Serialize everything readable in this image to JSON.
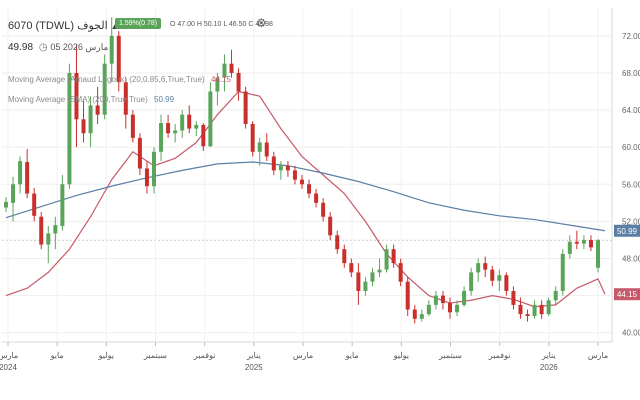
{
  "header": {
    "symbol": "6070 (TDWL)",
    "name": "الجوف",
    "change": "1.59%(0.78)",
    "last": "49.98",
    "date": "05 مارس 2026",
    "ohlc": "O 47.00  H 50.10  L 46.50  C 49.98",
    "gear_icon": "gear-icon",
    "clock_icon": "clock-icon",
    "up_arrow": "▲"
  },
  "indicators": [
    {
      "label": "Moving Average (Arnaud Legoux) (20,0.85,6,True,True)",
      "value": "44.15",
      "color": "#c65a6a"
    },
    {
      "label": "Moving Average (SMA) (200,True,True)",
      "value": "50.99",
      "color": "#5b7fa4"
    }
  ],
  "chart_data": {
    "type": "candlestick",
    "title": "",
    "xlabel": "",
    "ylabel": "",
    "ylim": [
      39,
      75
    ],
    "grid": true,
    "y_ticks": [
      "40.00",
      "44.00",
      "48.00",
      "52.00",
      "56.00",
      "60.00",
      "64.00",
      "68.00",
      "72.00"
    ],
    "y_tick_values": [
      40,
      44,
      48,
      52,
      56,
      60,
      64,
      68,
      72
    ],
    "x_labels": [
      "مارس",
      "مايو",
      "يوليو",
      "سبتمبر",
      "نوفمبر",
      "يناير",
      "مارس",
      "مايو",
      "يوليو",
      "سبتمبر",
      "نوفمبر",
      "يناير",
      "مارس"
    ],
    "x_years": [
      "2024",
      "",
      "",
      "",
      "",
      "2025",
      "",
      "",
      "",
      "",
      "",
      "2026",
      ""
    ],
    "up_color": "#5aa45a",
    "down_color": "#c9302c",
    "last_price": 49.98,
    "candles": [
      [
        53.5,
        54.6,
        53.0,
        54.1
      ],
      [
        54.0,
        56.8,
        52.0,
        56.0
      ],
      [
        56.0,
        59.0,
        55.0,
        58.5
      ],
      [
        58.4,
        59.8,
        54.5,
        55.0
      ],
      [
        55.0,
        55.6,
        52.0,
        52.6
      ],
      [
        52.5,
        53.0,
        49.0,
        49.5
      ],
      [
        49.5,
        51.5,
        47.5,
        50.7
      ],
      [
        50.7,
        52.5,
        49.0,
        51.6
      ],
      [
        51.5,
        57.0,
        51.0,
        56.0
      ],
      [
        56.0,
        69.0,
        55.5,
        68.0
      ],
      [
        68.0,
        71.0,
        60.0,
        63.0
      ],
      [
        63.0,
        65.0,
        60.5,
        61.5
      ],
      [
        61.5,
        65.5,
        60.0,
        64.5
      ],
      [
        64.5,
        66.5,
        62.5,
        63.5
      ],
      [
        63.5,
        70.0,
        63.0,
        69.0
      ],
      [
        69.0,
        74.0,
        67.0,
        72.0
      ],
      [
        72.0,
        72.5,
        66.0,
        67.0
      ],
      [
        67.0,
        67.5,
        62.0,
        63.5
      ],
      [
        63.5,
        64.0,
        60.5,
        61.0
      ],
      [
        61.0,
        61.5,
        57.0,
        57.7
      ],
      [
        57.7,
        58.5,
        55.0,
        55.8
      ],
      [
        55.8,
        60.0,
        55.0,
        59.5
      ],
      [
        59.5,
        63.5,
        58.5,
        62.6
      ],
      [
        62.6,
        63.5,
        61.0,
        61.5
      ],
      [
        61.5,
        62.5,
        60.5,
        61.8
      ],
      [
        61.8,
        64.0,
        61.0,
        63.5
      ],
      [
        63.5,
        64.5,
        61.5,
        62.0
      ],
      [
        62.0,
        62.8,
        61.2,
        62.4
      ],
      [
        62.4,
        62.6,
        59.6,
        60.1
      ],
      [
        60.1,
        67.0,
        60.0,
        66.0
      ],
      [
        66.0,
        68.0,
        64.5,
        67.5
      ],
      [
        67.5,
        70.0,
        66.0,
        69.0
      ],
      [
        69.0,
        70.5,
        67.5,
        68.0
      ],
      [
        68.0,
        68.5,
        65.0,
        66.0
      ],
      [
        66.0,
        66.5,
        62.0,
        62.5
      ],
      [
        62.5,
        62.8,
        59.0,
        59.5
      ],
      [
        59.5,
        61.0,
        58.0,
        60.5
      ],
      [
        60.5,
        61.5,
        58.5,
        59.0
      ],
      [
        59.0,
        59.5,
        57.0,
        57.5
      ],
      [
        57.5,
        58.5,
        56.5,
        58.0
      ],
      [
        58.0,
        58.5,
        56.8,
        57.5
      ],
      [
        57.5,
        58.0,
        56.0,
        56.5
      ],
      [
        56.5,
        57.0,
        55.5,
        56.0
      ],
      [
        56.0,
        56.5,
        54.5,
        55.0
      ],
      [
        55.0,
        55.5,
        53.5,
        54.0
      ],
      [
        54.0,
        54.5,
        52.0,
        52.5
      ],
      [
        52.5,
        53.0,
        50.0,
        50.5
      ],
      [
        50.5,
        51.0,
        48.5,
        49.0
      ],
      [
        49.0,
        49.5,
        47.0,
        47.5
      ],
      [
        47.5,
        48.0,
        46.0,
        46.5
      ],
      [
        46.5,
        47.5,
        43.0,
        44.5
      ],
      [
        44.5,
        46.0,
        44.0,
        45.5
      ],
      [
        45.5,
        47.0,
        45.0,
        46.5
      ],
      [
        46.5,
        48.0,
        46.0,
        46.8
      ],
      [
        46.8,
        49.5,
        46.5,
        49.0
      ],
      [
        49.0,
        49.5,
        47.0,
        47.5
      ],
      [
        47.5,
        48.0,
        45.0,
        45.5
      ],
      [
        45.5,
        46.0,
        41.8,
        42.5
      ],
      [
        42.5,
        43.0,
        41.0,
        41.5
      ],
      [
        41.5,
        42.5,
        41.2,
        42.0
      ],
      [
        42.0,
        43.5,
        41.8,
        43.0
      ],
      [
        43.0,
        44.5,
        42.5,
        44.0
      ],
      [
        44.0,
        44.5,
        42.5,
        43.2
      ],
      [
        43.2,
        43.8,
        41.5,
        42.2
      ],
      [
        42.2,
        43.5,
        41.8,
        43.0
      ],
      [
        43.0,
        45.0,
        42.8,
        44.5
      ],
      [
        44.5,
        47.0,
        44.0,
        46.5
      ],
      [
        46.5,
        48.0,
        45.5,
        47.5
      ],
      [
        47.5,
        48.2,
        46.0,
        46.8
      ],
      [
        46.8,
        47.2,
        45.0,
        45.6
      ],
      [
        45.6,
        46.8,
        44.5,
        46.2
      ],
      [
        46.2,
        46.5,
        44.0,
        44.5
      ],
      [
        44.5,
        45.0,
        42.5,
        43.0
      ],
      [
        43.0,
        43.8,
        41.5,
        42.0
      ],
      [
        42.0,
        42.5,
        41.2,
        41.8
      ],
      [
        41.8,
        43.5,
        41.5,
        43.0
      ],
      [
        43.0,
        43.5,
        41.5,
        42.0
      ],
      [
        42.0,
        43.8,
        41.8,
        43.5
      ],
      [
        43.5,
        45.0,
        43.0,
        44.5
      ],
      [
        44.5,
        49.0,
        44.0,
        48.5
      ],
      [
        48.5,
        50.5,
        48.0,
        49.8
      ],
      [
        49.8,
        51.0,
        49.0,
        49.6
      ],
      [
        49.6,
        50.5,
        49.0,
        50.0
      ],
      [
        50.0,
        50.5,
        48.8,
        49.2
      ],
      [
        47.0,
        50.1,
        46.5,
        49.98
      ]
    ],
    "series": [
      {
        "name": "Moving Average (Arnaud Legoux) (20,0.85,6,True,True)",
        "color": "#c65a6a",
        "values": [
          [
            0,
            44.0
          ],
          [
            3,
            44.8
          ],
          [
            6,
            46.5
          ],
          [
            9,
            49.0
          ],
          [
            12,
            52.5
          ],
          [
            15,
            56.5
          ],
          [
            18,
            59.5
          ],
          [
            21,
            58.0
          ],
          [
            24,
            58.8
          ],
          [
            27,
            60.5
          ],
          [
            30,
            63.5
          ],
          [
            33,
            66.0
          ],
          [
            36,
            65.5
          ],
          [
            39,
            62.0
          ],
          [
            42,
            59.0
          ],
          [
            45,
            57.0
          ],
          [
            48,
            55.0
          ],
          [
            51,
            52.0
          ],
          [
            54,
            48.5
          ],
          [
            57,
            46.0
          ],
          [
            60,
            44.0
          ],
          [
            63,
            43.2
          ],
          [
            66,
            43.5
          ],
          [
            69,
            44.0
          ],
          [
            72,
            43.6
          ],
          [
            75,
            42.8
          ],
          [
            78,
            43.0
          ],
          [
            81,
            44.8
          ],
          [
            84,
            45.8
          ],
          [
            85,
            44.15
          ]
        ]
      },
      {
        "name": "Moving Average (SMA) (200,True,True)",
        "color": "#5b7fa4",
        "values": [
          [
            0,
            52.4
          ],
          [
            5,
            53.6
          ],
          [
            10,
            54.8
          ],
          [
            15,
            55.8
          ],
          [
            20,
            56.7
          ],
          [
            25,
            57.5
          ],
          [
            30,
            58.2
          ],
          [
            35,
            58.4
          ],
          [
            40,
            58.0
          ],
          [
            45,
            57.2
          ],
          [
            50,
            56.3
          ],
          [
            55,
            55.2
          ],
          [
            60,
            54.0
          ],
          [
            65,
            53.2
          ],
          [
            70,
            52.6
          ],
          [
            75,
            52.2
          ],
          [
            80,
            51.6
          ],
          [
            85,
            50.99
          ]
        ]
      }
    ]
  }
}
